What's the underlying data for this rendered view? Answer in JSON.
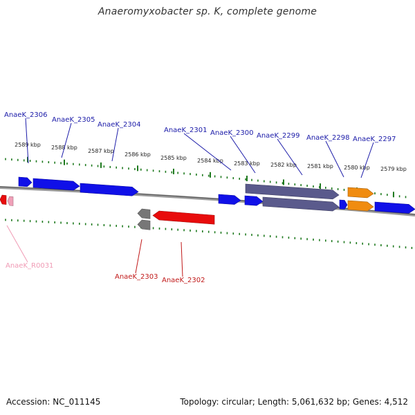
{
  "title": "Anaeromyxobacter sp. K, complete genome",
  "footer": {
    "accession": "Accession: NC_011145",
    "topology": "Topology: circular; Length: 5,061,632 bp; Genes: 4,512"
  },
  "colors": {
    "forward_gene": "#1010e8",
    "reverse_gene": "#e80c0c",
    "pseudo_gene": "#5a5a8c",
    "rna_gene": "#f08c10",
    "ncrna_gene": "#f0a0b8",
    "unknown_gene": "#777777",
    "tick": "#1f7a1f",
    "forward_label": "#1a1aa8",
    "reverse_label": "#c01818",
    "ncrna_label": "#f09ab4"
  },
  "scale": {
    "unit": "kbp",
    "major_ticks": [
      "2589 kbp",
      "2588 kbp",
      "2587 kbp",
      "2586 kbp",
      "2585 kbp",
      "2584 kbp",
      "2583 kbp",
      "2582 kbp",
      "2581 kbp",
      "2580 kbp",
      "2579 kbp"
    ]
  },
  "genes": [
    {
      "name": "AnaeK_2306",
      "strand": "forward",
      "type": "forward_gene"
    },
    {
      "name": "AnaeK_2305",
      "strand": "forward",
      "type": "forward_gene"
    },
    {
      "name": "AnaeK_2304",
      "strand": "forward",
      "type": "forward_gene"
    },
    {
      "name": "AnaeK_2301",
      "strand": "forward",
      "type": "forward_gene"
    },
    {
      "name": "AnaeK_2300",
      "strand": "forward",
      "type": "forward_gene"
    },
    {
      "name": "AnaeK_2299",
      "strand": "forward",
      "type": "pseudo_gene"
    },
    {
      "name": "AnaeK_2298",
      "strand": "forward",
      "type": "forward_gene"
    },
    {
      "name": "AnaeK_2297",
      "strand": "forward",
      "type": "rna_gene"
    },
    {
      "name": "AnaeK_R0031",
      "strand": "reverse",
      "type": "ncrna_gene"
    },
    {
      "name": "AnaeK_2303",
      "strand": "reverse",
      "type": "unknown_gene"
    },
    {
      "name": "AnaeK_2302",
      "strand": "reverse",
      "type": "reverse_gene"
    }
  ]
}
